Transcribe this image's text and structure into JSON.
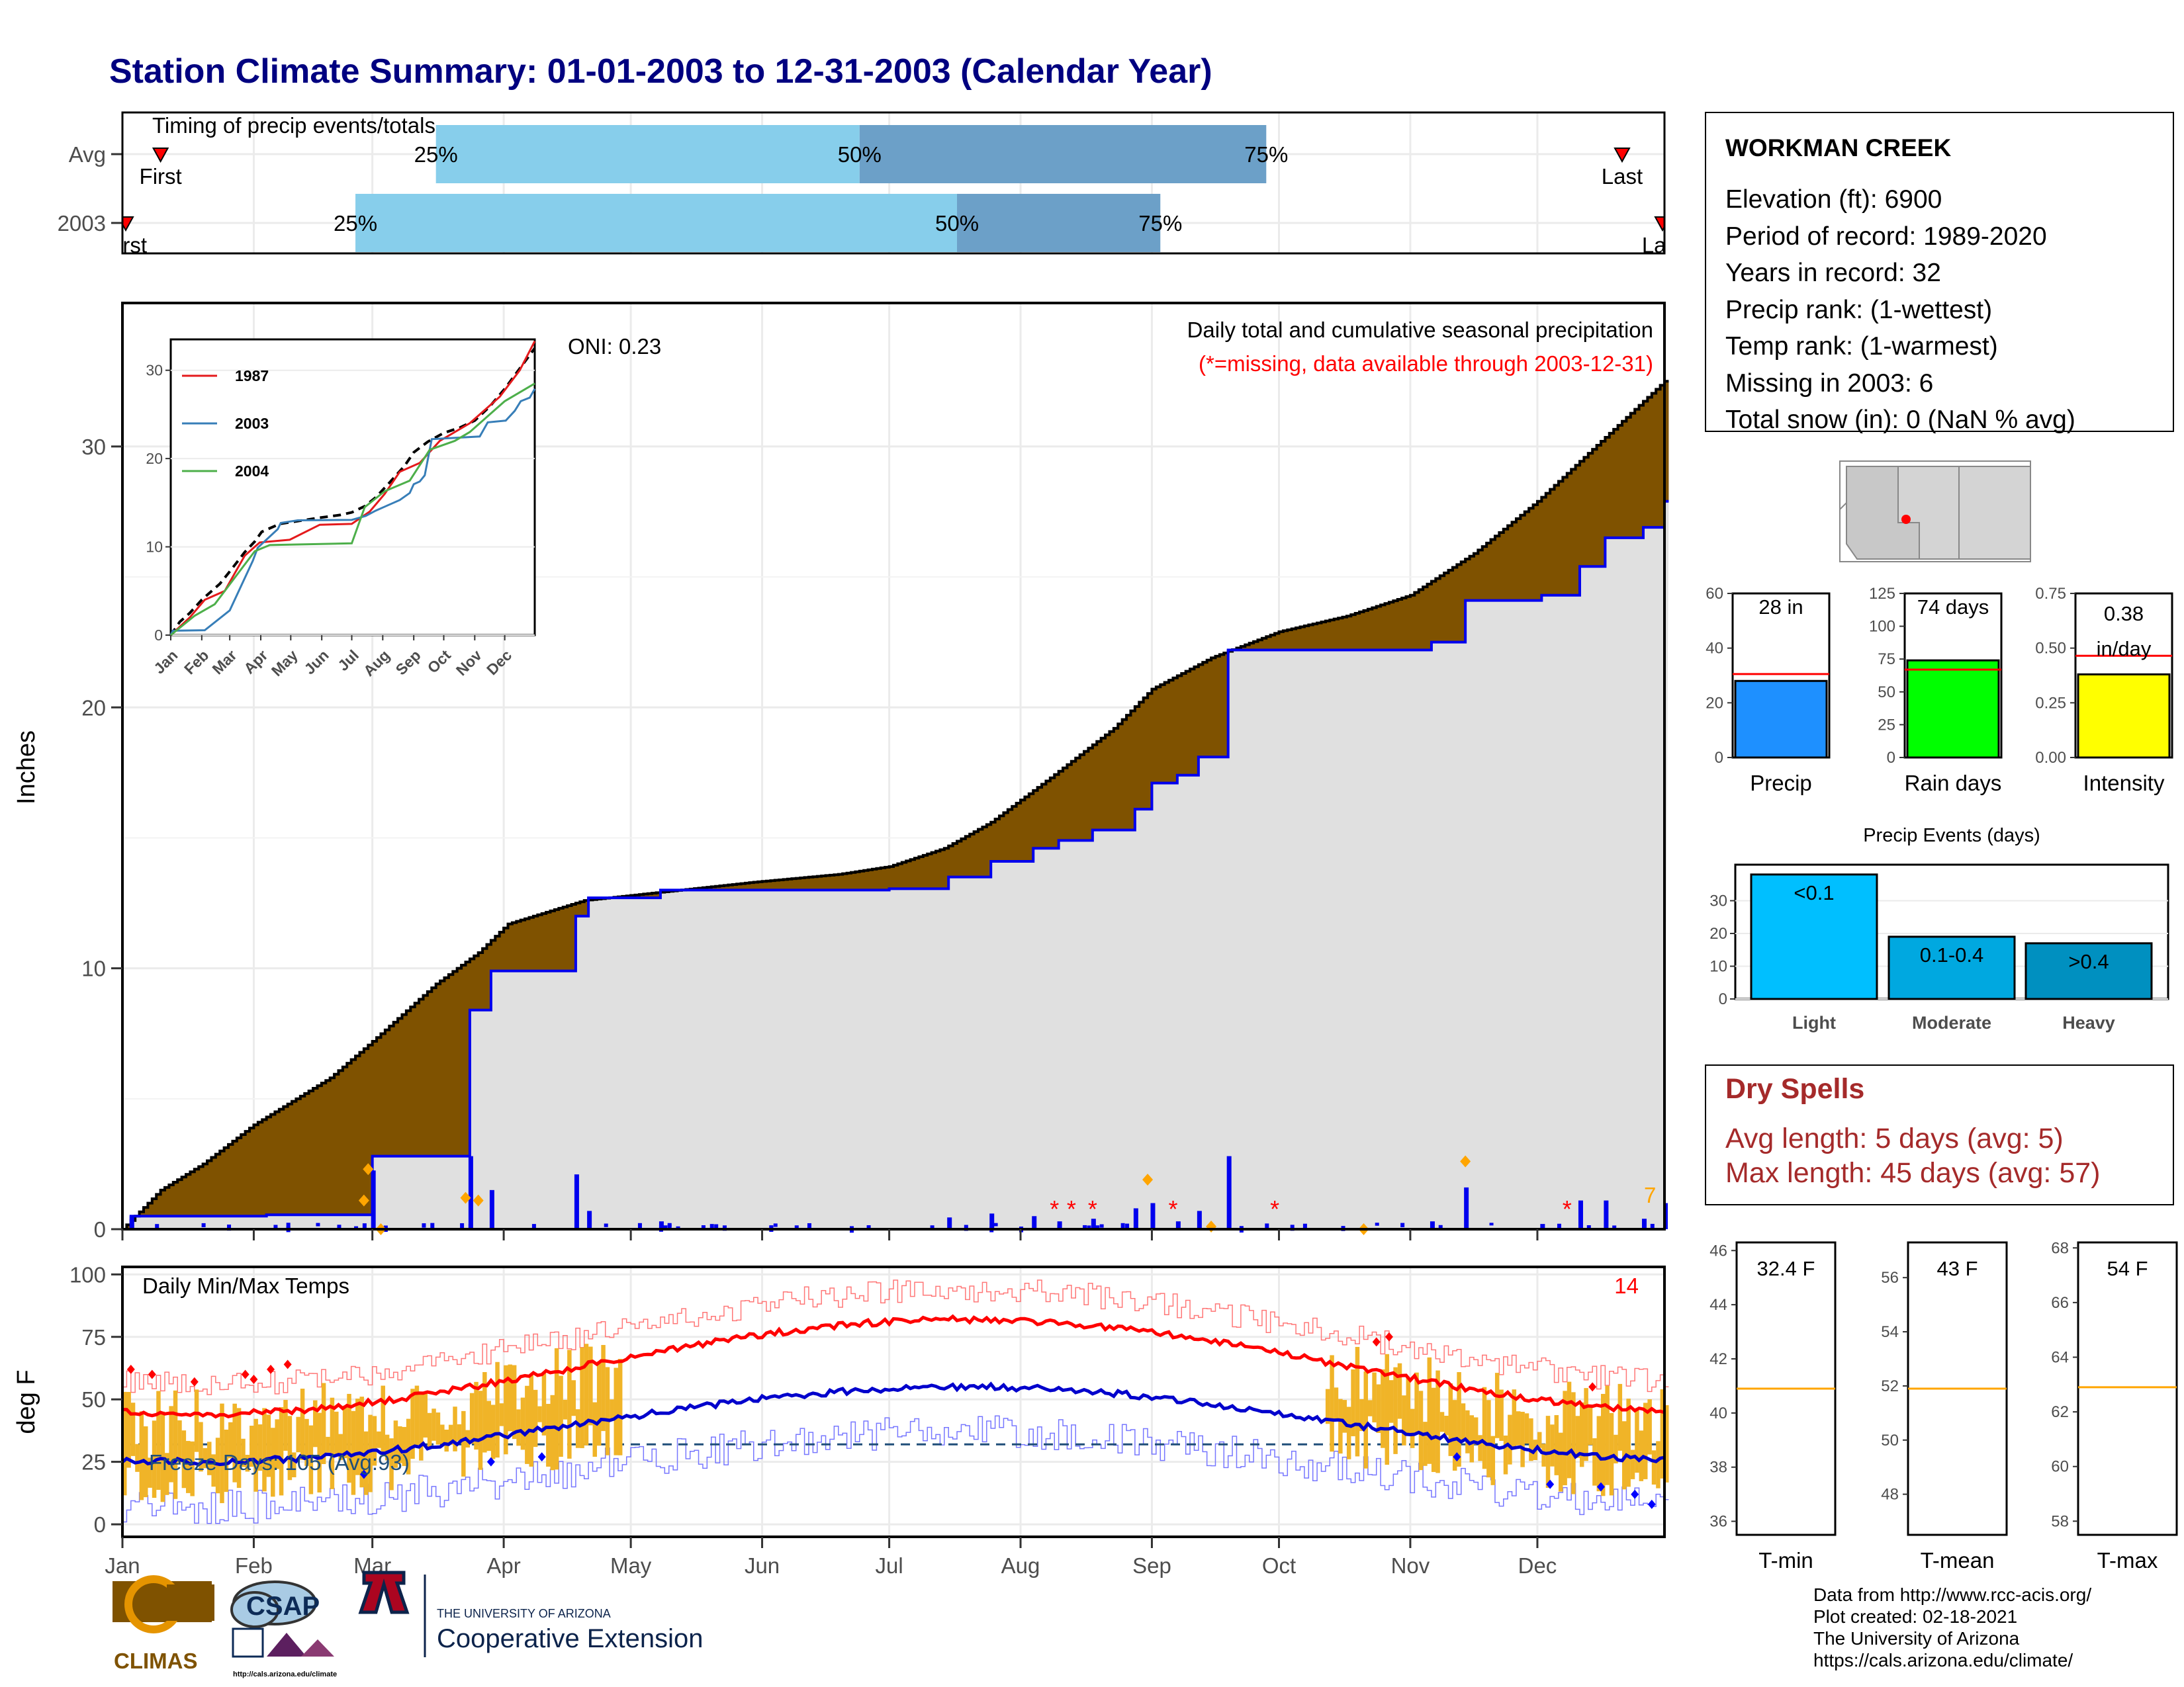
{
  "title": "Station Climate Summary: 01-01-2003 to 12-31-2003 (Calendar Year)",
  "colors": {
    "title": "#000080",
    "brown": "#7f5200",
    "green": "#007f00",
    "blue_line": "#0000ee",
    "gray_fill": "#e0e0e0",
    "light_blue": "#87ceeb",
    "steel_blue": "#6ca0c8",
    "precip_bar": "#1e90ff",
    "rain_days_bar": "#00ff00",
    "intensity_bar": "#ffff00",
    "avg_line": "#ff0000",
    "temp_band": "#f0b428",
    "orange": "#ffa500",
    "dry_spells": "#a52a2a"
  },
  "timing": {
    "label": "Timing of precip events/totals",
    "rows": [
      {
        "label": "Avg",
        "first_label": "First",
        "last_label": "Last",
        "first_doy": 10,
        "last_doy": 355,
        "p25_doy": 75,
        "p50_doy": 175,
        "p75_doy": 271,
        "p25_label": "25%",
        "p50_label": "50%",
        "p75_label": "75%"
      },
      {
        "label": "2003",
        "first_label": "First",
        "last_label": "Last",
        "first_doy": 1,
        "last_doy": 365,
        "p25_doy": 56,
        "p50_doy": 198,
        "p75_doy": 246,
        "p25_label": "25%",
        "p50_label": "50%",
        "p75_label": "75%"
      }
    ]
  },
  "precip_panel": {
    "ylabel": "Inches",
    "yticks": [
      0,
      10,
      20,
      30
    ],
    "ylim": [
      0,
      35.5
    ],
    "oni": "ONI: 0.23",
    "note1": "Daily total and cumulative seasonal precipitation",
    "note2": "(*=missing, data available through 2003-12-31)",
    "snow_count": "7",
    "missing_doys": [
      221,
      225,
      230,
      249,
      273,
      342
    ]
  },
  "inset": {
    "yticks": [
      0,
      10,
      20,
      30
    ],
    "months": [
      "Jan",
      "Feb",
      "Mar",
      "Apr",
      "May",
      "Jun",
      "Jul",
      "Aug",
      "Sep",
      "Oct",
      "Nov",
      "Dec"
    ],
    "legend": [
      {
        "name": "1987",
        "color": "#e41a1c"
      },
      {
        "name": "2003",
        "color": "#377eb8"
      },
      {
        "name": "2004",
        "color": "#4daf4a"
      }
    ]
  },
  "temp_panel": {
    "ylabel": "deg F",
    "label": "Daily Min/Max Temps",
    "yticks": [
      0,
      25,
      50,
      75,
      100
    ],
    "ylim": [
      -5,
      103
    ],
    "freeze": "Freeze Days: 105 (Avg:93)",
    "record_count": "14",
    "freeze_line_f": 32
  },
  "months": [
    "Jan",
    "Feb",
    "Mar",
    "Apr",
    "May",
    "Jun",
    "Jul",
    "Aug",
    "Sep",
    "Oct",
    "Nov",
    "Dec"
  ],
  "station": {
    "name": "WORKMAN CREEK",
    "lines": [
      "Elevation (ft): 6900",
      "Period of record: 1989-2020",
      "Years in record: 32",
      "Precip rank:  (1-wettest)",
      "Temp rank:  (1-warmest)",
      "Missing in 2003: 6",
      "Total snow (in): 0 (NaN % avg)"
    ]
  },
  "mini_bars": [
    {
      "label": "Precip",
      "value_text": "28 in",
      "value": 28,
      "avg": 30.5,
      "ymax": 60,
      "yticks": [
        0,
        20,
        40,
        60
      ],
      "tick_labels": [
        "0",
        "20",
        "40",
        "60"
      ]
    },
    {
      "label": "Rain days",
      "value_text": "74 days",
      "value": 74,
      "avg": 67,
      "ymax": 125,
      "yticks": [
        0,
        25,
        50,
        75,
        100,
        125
      ],
      "tick_labels": [
        "0",
        "25",
        "50",
        "75",
        "100",
        "125"
      ]
    },
    {
      "label": "Intensity",
      "value_text": "0.38",
      "value_text2": "in/day",
      "value": 0.38,
      "avg": 0.465,
      "ymax": 0.75,
      "yticks": [
        0,
        0.25,
        0.5,
        0.75
      ],
      "tick_labels": [
        "0.00",
        "0.25",
        "0.50",
        "0.75"
      ]
    }
  ],
  "precip_events": {
    "title": "Precip Events (days)",
    "categories": [
      "Light",
      "Moderate",
      "Heavy"
    ],
    "bar_labels": [
      "<0.1",
      "0.1-0.4",
      ">0.4"
    ],
    "values": [
      38,
      19,
      17
    ],
    "yticks": [
      0,
      10,
      20,
      30
    ],
    "colors": [
      "#00bfff",
      "#00a8e0",
      "#0090c0"
    ]
  },
  "dry_spells": {
    "title": "Dry Spells",
    "avg_line": "Avg length: 5 days (avg: 5)",
    "max_line": "Max length: 45 days (avg: 57)"
  },
  "temp_bars": [
    {
      "label": "T-min",
      "value_text": "32.4 F",
      "avg": 40.9,
      "ylim": [
        35.5,
        46.3
      ],
      "yticks": [
        36,
        38,
        40,
        42,
        44,
        46
      ]
    },
    {
      "label": "T-mean",
      "value_text": "43 F",
      "avg": 51.9,
      "ylim": [
        46.5,
        57.3
      ],
      "yticks": [
        48,
        50,
        52,
        54,
        56
      ]
    },
    {
      "label": "T-max",
      "value_text": "54 F",
      "avg": 62.9,
      "ylim": [
        57.5,
        68.2
      ],
      "yticks": [
        58,
        60,
        62,
        64,
        66,
        68
      ]
    }
  ],
  "credits": [
    "Data from http://www.rcc-acis.org/",
    "Plot created: 02-18-2021",
    "The University of Arizona",
    "https://cals.arizona.edu/climate/"
  ],
  "logos": {
    "climas": "CLIMAS",
    "csap": "CSAP",
    "csap_url": "http://cals.arizona.edu/climate",
    "ua_line1": "THE UNIVERSITY OF ARIZONA",
    "ua_line2": "Cooperative Extension"
  }
}
